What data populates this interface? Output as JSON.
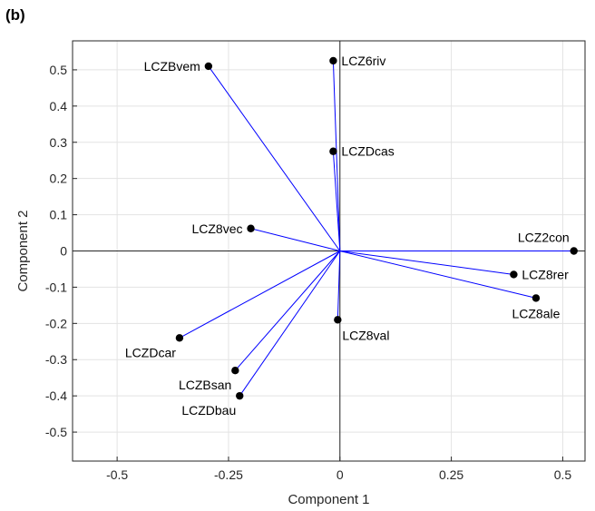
{
  "chart_data": {
    "type": "scatter",
    "panel_label": "(b)",
    "xlabel": "Component 1",
    "ylabel": "Component 2",
    "xlim": [
      -0.6,
      0.55
    ],
    "ylim": [
      -0.58,
      0.58
    ],
    "xticks": [
      -0.5,
      -0.25,
      0,
      0.25,
      0.5
    ],
    "xtick_labels": [
      "-0.5",
      "-0.25",
      "0",
      "0.25",
      "0.5"
    ],
    "yticks": [
      0.5,
      0.4,
      0.3,
      0.2,
      0.1,
      0,
      -0.1,
      -0.2,
      -0.3,
      -0.4,
      -0.5
    ],
    "ytick_labels": [
      "0.5",
      "0.4",
      "0.3",
      "0.2",
      "0.1",
      "0",
      "-0.1",
      "-0.2",
      "-0.3",
      "-0.4",
      "-0.5"
    ],
    "grid": true,
    "vector_color": "#0000ff",
    "point_color": "#000000",
    "points": [
      {
        "label": "LCZBvem",
        "x": -0.295,
        "y": 0.51,
        "label_pos": "left"
      },
      {
        "label": "LCZ6riv",
        "x": -0.015,
        "y": 0.525,
        "label_pos": "right"
      },
      {
        "label": "LCZDcas",
        "x": -0.015,
        "y": 0.275,
        "label_pos": "right"
      },
      {
        "label": "LCZ8vec",
        "x": -0.2,
        "y": 0.062,
        "label_pos": "left"
      },
      {
        "label": "LCZ2con",
        "x": 0.525,
        "y": 0.0,
        "label_pos": "above-left"
      },
      {
        "label": "LCZ8rer",
        "x": 0.39,
        "y": -0.065,
        "label_pos": "right"
      },
      {
        "label": "LCZ8ale",
        "x": 0.44,
        "y": -0.13,
        "label_pos": "below"
      },
      {
        "label": "LCZ8val",
        "x": -0.005,
        "y": -0.19,
        "label_pos": "below-right"
      },
      {
        "label": "LCZDcar",
        "x": -0.36,
        "y": -0.24,
        "label_pos": "below-left"
      },
      {
        "label": "LCZBsan",
        "x": -0.235,
        "y": -0.33,
        "label_pos": "below-left"
      },
      {
        "label": "LCZDbau",
        "x": -0.225,
        "y": -0.4,
        "label_pos": "below-left"
      }
    ]
  }
}
